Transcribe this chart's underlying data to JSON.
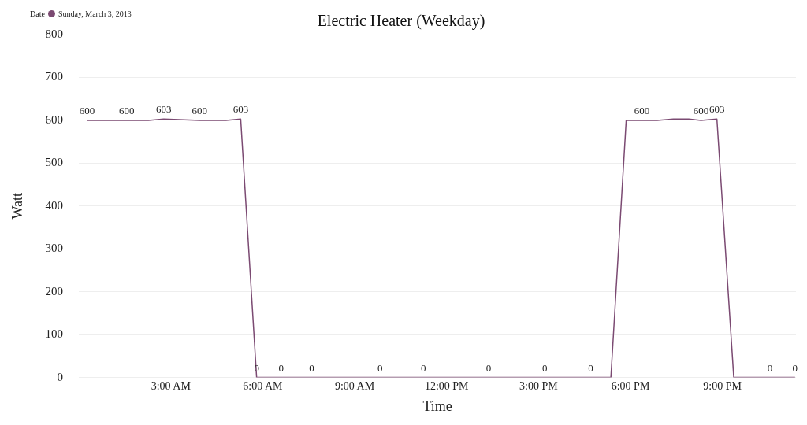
{
  "chart_data": {
    "type": "line",
    "title": "Electric Heater (Weekday)",
    "xlabel": "Time",
    "ylabel": "Watt",
    "legend_title": "Date",
    "legend": "top left",
    "grid": "y",
    "marker": "none",
    "line_style": "solid",
    "x": [
      0.27,
      1.56,
      2.27,
      2.77,
      3.94,
      4.8,
      5.28,
      5.8,
      6.6,
      7.6,
      9.83,
      11.24,
      13.37,
      15.2,
      16.7,
      17.36,
      17.86,
      18.37,
      18.87,
      19.4,
      19.9,
      20.3,
      20.82,
      21.37,
      22.55,
      23.37
    ],
    "xlim": [
      0,
      23.4
    ],
    "xticks": [
      {
        "value": 3,
        "label": "3:00 AM"
      },
      {
        "value": 6,
        "label": "6:00 AM"
      },
      {
        "value": 9,
        "label": "9:00 AM"
      },
      {
        "value": 12,
        "label": "12:00 PM"
      },
      {
        "value": 15,
        "label": "3:00 PM"
      },
      {
        "value": 18,
        "label": "6:00 PM"
      },
      {
        "value": 21,
        "label": "9:00 PM"
      }
    ],
    "ylim": [
      0,
      800
    ],
    "yticks": [
      0,
      100,
      200,
      300,
      400,
      500,
      600,
      700,
      800
    ],
    "series": [
      {
        "name": "Sunday, March 3, 2013",
        "color": "#7b4a72",
        "values": [
          600,
          600,
          600,
          603,
          600,
          600,
          603,
          0,
          0,
          0,
          0,
          0,
          0,
          0,
          0,
          0,
          600,
          600,
          600,
          603,
          603,
          600,
          603,
          0,
          0,
          0
        ],
        "value_labels": [
          "600",
          "600",
          null,
          "603",
          "600",
          null,
          "603",
          "0",
          "0",
          "0",
          "0",
          "0",
          "0",
          "0",
          "0",
          null,
          null,
          "600",
          null,
          null,
          null,
          "600",
          "603",
          null,
          "0",
          "0"
        ]
      }
    ]
  }
}
